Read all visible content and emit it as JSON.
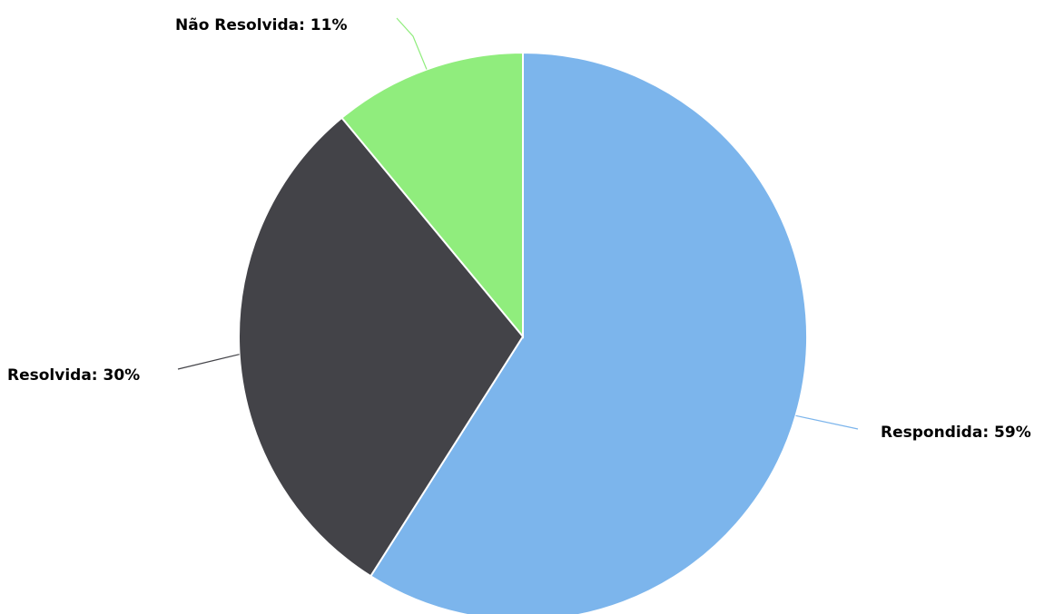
{
  "chart_data": {
    "type": "pie",
    "title": "",
    "slices": [
      {
        "label": "Respondida",
        "value": 59,
        "display": "Respondida: 59%",
        "color": "#7cb5ec"
      },
      {
        "label": "Resolvida",
        "value": 30,
        "display": "Resolvida: 30%",
        "color": "#434348"
      },
      {
        "label": "Não Resolvida",
        "value": 11,
        "display": "Não Resolvida: 11%",
        "color": "#90ed7d"
      }
    ],
    "start_angle": "12 o'clock",
    "direction": "clockwise",
    "legend": "none",
    "labels": "outside with connector lines"
  }
}
